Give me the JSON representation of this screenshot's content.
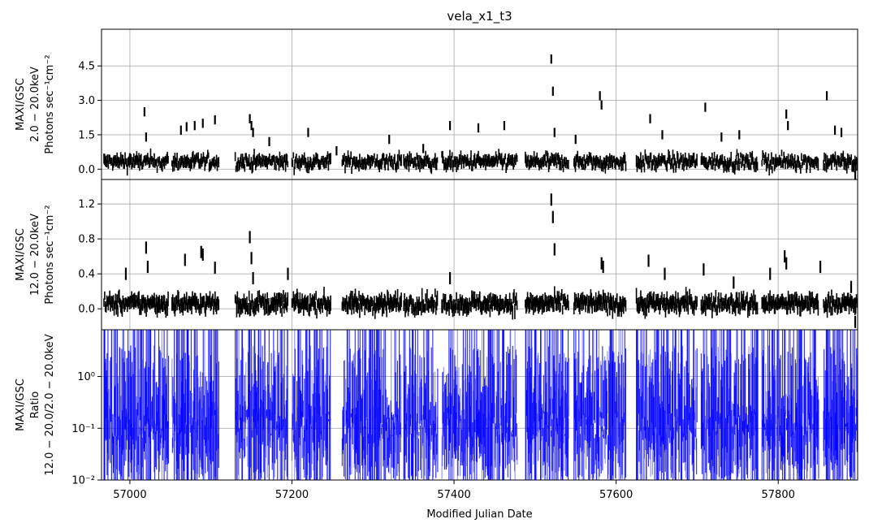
{
  "chart_data": {
    "type": "scatter",
    "title": "vela_x1_t3",
    "shared_x": {
      "label": "Modified Julian Date",
      "range": [
        56965,
        57898
      ],
      "ticks": [
        57000,
        57200,
        57400,
        57600,
        57800
      ]
    },
    "grid": true,
    "panels": [
      {
        "id": "soft",
        "ylabel": [
          "MAXI/GSC",
          "2.0 − 20.0keV",
          "Photons sec⁻¹cm⁻²"
        ],
        "ylim": [
          -0.45,
          6.1
        ],
        "scale": "linear",
        "yticks": [
          0.0,
          1.5,
          3.0,
          4.5
        ],
        "ytick_labels": [
          "0.0",
          "1.5",
          "3.0",
          "4.5"
        ],
        "color": "#000000",
        "series": {
          "x": [
            56980,
            57000,
            57018,
            57020,
            57063,
            57070,
            57080,
            57090,
            57105,
            57148,
            57150,
            57152,
            57172,
            57220,
            57255,
            57320,
            57362,
            57395,
            57430,
            57462,
            57520,
            57522,
            57524,
            57550,
            57580,
            57582,
            57642,
            57657,
            57710,
            57730,
            57752,
            57810,
            57812,
            57860,
            57870,
            57878,
            57895
          ],
          "y": [
            0.35,
            0.5,
            2.5,
            1.4,
            1.7,
            1.85,
            1.9,
            2.0,
            2.15,
            2.2,
            1.9,
            1.6,
            1.2,
            1.6,
            0.8,
            1.3,
            0.9,
            1.9,
            1.8,
            1.9,
            4.8,
            3.4,
            1.6,
            1.3,
            3.2,
            2.8,
            2.2,
            1.5,
            2.7,
            1.4,
            1.5,
            2.4,
            1.9,
            3.2,
            1.7,
            1.6,
            -0.3
          ]
        }
      },
      {
        "id": "hard",
        "ylabel": [
          "MAXI/GSC",
          "12.0 − 20.0keV",
          "Photons sec⁻¹cm⁻²"
        ],
        "ylim": [
          -0.24,
          1.48
        ],
        "scale": "linear",
        "yticks": [
          0.0,
          0.4,
          0.8,
          1.2
        ],
        "ytick_labels": [
          "0.0",
          "0.4",
          "0.8",
          "1.2"
        ],
        "color": "#000000",
        "series": {
          "x": [
            56995,
            57020,
            57022,
            57068,
            57088,
            57090,
            57105,
            57148,
            57150,
            57152,
            57195,
            57395,
            57520,
            57522,
            57524,
            57582,
            57584,
            57640,
            57660,
            57708,
            57745,
            57790,
            57808,
            57810,
            57852,
            57890,
            57895
          ],
          "y": [
            0.4,
            0.7,
            0.48,
            0.56,
            0.65,
            0.62,
            0.47,
            0.82,
            0.58,
            0.35,
            0.4,
            0.35,
            1.25,
            1.05,
            0.68,
            0.52,
            0.48,
            0.55,
            0.4,
            0.45,
            0.3,
            0.4,
            0.6,
            0.52,
            0.48,
            0.25,
            -0.15
          ]
        }
      },
      {
        "id": "ratio",
        "ylabel": [
          "MAXI/GSC",
          "Ratio",
          "12.0 − 20.0/2.0 − 20.0keV"
        ],
        "ylim": [
          0.01,
          8
        ],
        "scale": "log",
        "yticks": [
          0.01,
          0.1,
          1
        ],
        "ytick_labels": [
          "10⁻²",
          "10⁻¹",
          "10⁰"
        ],
        "color": "#0000ff"
      }
    ],
    "observation_segments": [
      [
        56968,
        57048
      ],
      [
        57052,
        57110
      ],
      [
        57130,
        57195
      ],
      [
        57200,
        57248
      ],
      [
        57262,
        57335
      ],
      [
        57338,
        57380
      ],
      [
        57385,
        57478
      ],
      [
        57488,
        57542
      ],
      [
        57548,
        57612
      ],
      [
        57625,
        57700
      ],
      [
        57705,
        57775
      ],
      [
        57780,
        57850
      ],
      [
        57856,
        57898
      ]
    ]
  }
}
